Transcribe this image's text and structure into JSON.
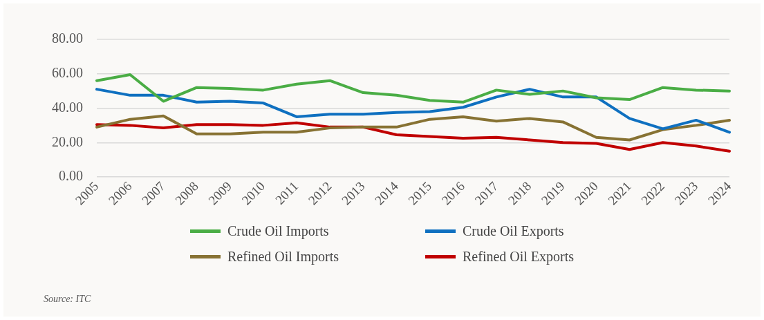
{
  "chart_data": {
    "type": "line",
    "categories": [
      "2005",
      "2006",
      "2007",
      "2008",
      "2009",
      "2010",
      "2011",
      "2012",
      "2013",
      "2014",
      "2015",
      "2016",
      "2017",
      "2018",
      "2019",
      "2020",
      "2021",
      "2022",
      "2023",
      "2024"
    ],
    "series": [
      {
        "name": "Crude Oil Imports",
        "color": "#4aad45",
        "values": [
          56,
          59.5,
          44,
          52,
          51.5,
          50.5,
          54,
          56,
          49,
          47.5,
          44.5,
          43.5,
          50.5,
          48,
          50,
          46,
          45,
          52,
          50.5,
          50
        ]
      },
      {
        "name": "Crude Oil Exports",
        "color": "#0f70c0",
        "values": [
          51,
          47.5,
          47.5,
          43.5,
          44,
          43,
          35,
          36.5,
          36.5,
          37.5,
          38,
          40.5,
          46.5,
          51,
          46.5,
          46.5,
          34,
          28,
          33,
          26
        ]
      },
      {
        "name": "Refined Oil Imports",
        "color": "#877233",
        "values": [
          29,
          33.5,
          35.5,
          25,
          25,
          26,
          26,
          28.5,
          29,
          29,
          33.5,
          35,
          32.5,
          34,
          32,
          23,
          21.5,
          27.5,
          30,
          33
        ]
      },
      {
        "name": "Refined Oil Exports",
        "color": "#c00000",
        "values": [
          30.5,
          30,
          28.5,
          30.5,
          30.5,
          30,
          31.5,
          29,
          29,
          24.5,
          23.5,
          22.5,
          23,
          21.5,
          20,
          19.5,
          16,
          20,
          18,
          15
        ]
      }
    ],
    "ylim": [
      0,
      80
    ],
    "yticks": [
      {
        "value": 0,
        "label": "0.00"
      },
      {
        "value": 20,
        "label": "20.00"
      },
      {
        "value": 40,
        "label": "40.00"
      },
      {
        "value": 60,
        "label": "60.00"
      },
      {
        "value": 80,
        "label": "80.00"
      }
    ],
    "grid": "y",
    "legend": "bottom",
    "marker": "none",
    "line_style": "solid",
    "annotations": [
      "Source: ITC"
    ]
  }
}
